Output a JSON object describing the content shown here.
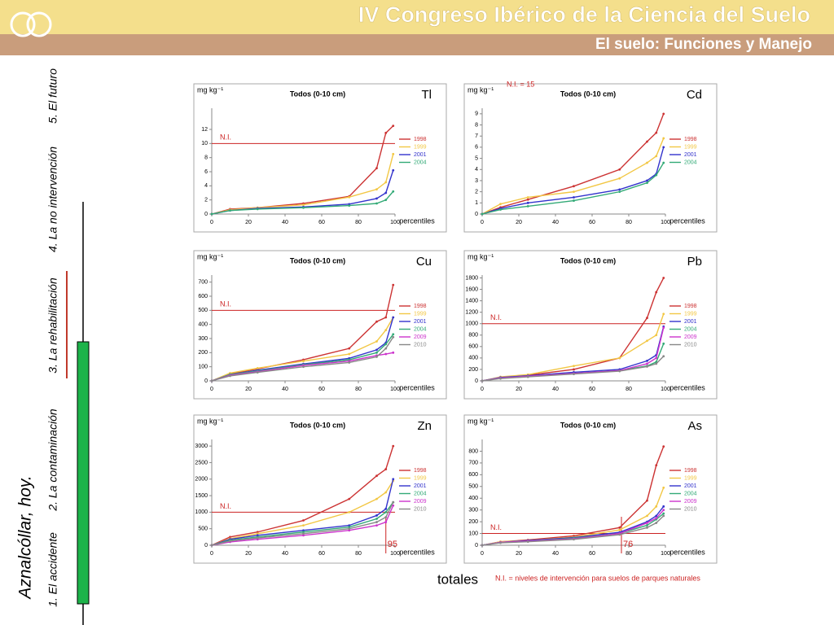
{
  "header": {
    "title": "IV Congreso Ibérico de la Ciencia del Suelo",
    "subtitle": "El suelo: Funciones y Manejo"
  },
  "sidebar": {
    "title": "Aznalcóllar, hoy.",
    "items": [
      "1. El accidente",
      "2. La contaminación",
      "3. La rehabilitación",
      "4. La no intervención",
      "5. El futuro"
    ]
  },
  "footer": {
    "label": "totales",
    "note": "N.I. = niveles de intervención para suelos de parques naturales"
  },
  "chart_data": [
    {
      "type": "line",
      "title": "Todos (0-10 cm)",
      "element": "Tl",
      "y_label": "mg kg⁻¹",
      "x_label": "percentiles",
      "x": [
        0,
        10,
        25,
        50,
        75,
        90,
        95,
        99
      ],
      "xlim": [
        0,
        100
      ],
      "xticks": [
        0,
        20,
        40,
        60,
        80,
        100
      ],
      "ylim": [
        0,
        15
      ],
      "yticks": [
        0,
        2,
        4,
        6,
        8,
        10,
        12
      ],
      "reference_line": {
        "value": 10,
        "label": "N.I."
      },
      "series": [
        {
          "name": "1998",
          "color": "#cc3333",
          "values": [
            0,
            0.7,
            0.9,
            1.5,
            2.5,
            6.5,
            11.5,
            12.5
          ]
        },
        {
          "name": "1999",
          "color": "#f2c744",
          "values": [
            0,
            0.6,
            0.9,
            1.3,
            2.4,
            3.5,
            4.5,
            8.5
          ]
        },
        {
          "name": "2001",
          "color": "#3333cc",
          "values": [
            0,
            0.5,
            0.8,
            1.0,
            1.4,
            2.2,
            3,
            6.2
          ]
        },
        {
          "name": "2004",
          "color": "#33aa77",
          "values": [
            0,
            0.5,
            0.7,
            0.9,
            1.2,
            1.5,
            2,
            3.2
          ]
        }
      ]
    },
    {
      "type": "line",
      "title": "Todos (0-10 cm)",
      "element": "Cd",
      "y_label": "mg kg⁻¹",
      "x_label": "percentiles",
      "annotation": "N.I. = 15",
      "x": [
        0,
        10,
        25,
        50,
        75,
        90,
        95,
        99
      ],
      "xlim": [
        0,
        100
      ],
      "xticks": [
        0,
        20,
        40,
        60,
        80,
        100
      ],
      "ylim": [
        0,
        9.5
      ],
      "yticks": [
        0,
        1,
        2,
        3,
        4,
        5,
        6,
        7,
        8,
        9
      ],
      "series": [
        {
          "name": "1998",
          "color": "#cc3333",
          "values": [
            0,
            0.6,
            1.3,
            2.5,
            4,
            6.5,
            7.3,
            9
          ]
        },
        {
          "name": "1999",
          "color": "#f2c744",
          "values": [
            0,
            0.9,
            1.5,
            2,
            3.2,
            4.6,
            5.2,
            6.8
          ]
        },
        {
          "name": "2001",
          "color": "#3333cc",
          "values": [
            0,
            0.5,
            1,
            1.5,
            2.2,
            3,
            3.6,
            6
          ]
        },
        {
          "name": "2004",
          "color": "#33aa77",
          "values": [
            0,
            0.4,
            0.7,
            1.2,
            2,
            2.8,
            3.5,
            4.6
          ]
        }
      ]
    },
    {
      "type": "line",
      "title": "Todos (0-10 cm)",
      "element": "Cu",
      "y_label": "mg kg⁻¹",
      "x_label": "percentiles",
      "x": [
        0,
        10,
        25,
        50,
        75,
        90,
        95,
        99
      ],
      "xlim": [
        0,
        100
      ],
      "xticks": [
        0,
        20,
        40,
        60,
        80,
        100
      ],
      "ylim": [
        0,
        750
      ],
      "yticks": [
        0,
        100,
        200,
        300,
        400,
        500,
        600,
        700
      ],
      "reference_line": {
        "value": 500,
        "label": "N.I."
      },
      "series": [
        {
          "name": "1998",
          "color": "#cc3333",
          "values": [
            0,
            50,
            85,
            150,
            230,
            420,
            450,
            680
          ]
        },
        {
          "name": "1999",
          "color": "#f2c744",
          "values": [
            0,
            55,
            90,
            140,
            190,
            280,
            360,
            450
          ]
        },
        {
          "name": "2001",
          "color": "#3333cc",
          "values": [
            0,
            45,
            75,
            120,
            160,
            220,
            270,
            450
          ]
        },
        {
          "name": "2004",
          "color": "#33aa77",
          "values": [
            0,
            45,
            70,
            115,
            150,
            200,
            260,
            330
          ]
        },
        {
          "name": "2009",
          "color": "#cc33cc",
          "values": [
            0,
            40,
            65,
            110,
            140,
            180,
            190,
            200
          ]
        },
        {
          "name": "2010",
          "color": "#888888",
          "values": [
            0,
            35,
            60,
            100,
            130,
            170,
            230,
            310
          ]
        }
      ]
    },
    {
      "type": "line",
      "title": "Todos (0-10 cm)",
      "element": "Pb",
      "y_label": "mg kg⁻¹",
      "x_label": "percentiles",
      "x": [
        0,
        10,
        25,
        50,
        75,
        90,
        95,
        99
      ],
      "xlim": [
        0,
        100
      ],
      "xticks": [
        0,
        20,
        40,
        60,
        80,
        100
      ],
      "ylim": [
        0,
        1850
      ],
      "yticks": [
        0,
        200,
        400,
        600,
        800,
        1000,
        1200,
        1400,
        1600,
        1800
      ],
      "reference_line": {
        "value": 1000,
        "label": "N.I."
      },
      "series": [
        {
          "name": "1998",
          "color": "#cc3333",
          "values": [
            0,
            60,
            100,
            200,
            400,
            1100,
            1550,
            1800
          ]
        },
        {
          "name": "1999",
          "color": "#f2c744",
          "values": [
            0,
            70,
            110,
            260,
            400,
            700,
            800,
            1170
          ]
        },
        {
          "name": "2001",
          "color": "#3333cc",
          "values": [
            0,
            60,
            90,
            150,
            200,
            350,
            450,
            950
          ]
        },
        {
          "name": "2004",
          "color": "#33aa77",
          "values": [
            0,
            50,
            80,
            130,
            180,
            260,
            330,
            650
          ]
        },
        {
          "name": "2009",
          "color": "#cc33cc",
          "values": [
            0,
            50,
            80,
            130,
            180,
            300,
            400,
            930
          ]
        },
        {
          "name": "2010",
          "color": "#888888",
          "values": [
            0,
            40,
            70,
            120,
            170,
            250,
            300,
            430
          ]
        }
      ]
    },
    {
      "type": "line",
      "title": "Todos (0-10 cm)",
      "element": "Zn",
      "y_label": "mg kg⁻¹",
      "x_label": "percentiles",
      "x": [
        0,
        10,
        25,
        50,
        75,
        90,
        95,
        99
      ],
      "xlim": [
        0,
        100
      ],
      "xticks": [
        0,
        20,
        40,
        60,
        80,
        100
      ],
      "ylim": [
        0,
        3200
      ],
      "yticks": [
        0,
        500,
        1000,
        1500,
        2000,
        2500,
        3000
      ],
      "reference_line": {
        "value": 1000,
        "label": "N.I."
      },
      "x_marker": 95,
      "series": [
        {
          "name": "1998",
          "color": "#cc3333",
          "values": [
            0,
            250,
            400,
            750,
            1400,
            2100,
            2300,
            3000
          ]
        },
        {
          "name": "1999",
          "color": "#f2c744",
          "values": [
            0,
            200,
            350,
            600,
            1000,
            1400,
            1600,
            1950
          ]
        },
        {
          "name": "2001",
          "color": "#3333cc",
          "values": [
            0,
            180,
            300,
            450,
            600,
            900,
            1100,
            2000
          ]
        },
        {
          "name": "2004",
          "color": "#33aa77",
          "values": [
            0,
            150,
            250,
            400,
            550,
            800,
            1000,
            1300
          ]
        },
        {
          "name": "2009",
          "color": "#cc33cc",
          "values": [
            0,
            100,
            180,
            300,
            450,
            600,
            700,
            1200
          ]
        },
        {
          "name": "2010",
          "color": "#888888",
          "values": [
            0,
            130,
            220,
            350,
            500,
            700,
            850,
            1300
          ]
        }
      ]
    },
    {
      "type": "line",
      "title": "Todos (0-10 cm)",
      "element": "As",
      "y_label": "mg kg⁻¹",
      "x_label": "percentiles",
      "x": [
        0,
        10,
        25,
        50,
        75,
        90,
        95,
        99
      ],
      "xlim": [
        0,
        100
      ],
      "xticks": [
        0,
        20,
        40,
        60,
        80,
        100
      ],
      "ylim": [
        0,
        900
      ],
      "yticks": [
        0,
        100,
        200,
        300,
        400,
        500,
        600,
        700,
        800
      ],
      "reference_line": {
        "value": 100,
        "label": "N.I."
      },
      "x_marker": 76,
      "series": [
        {
          "name": "1998",
          "color": "#cc3333",
          "values": [
            0,
            30,
            45,
            80,
            150,
            380,
            680,
            840
          ]
        },
        {
          "name": "1999",
          "color": "#f2c744",
          "values": [
            0,
            30,
            40,
            70,
            130,
            250,
            330,
            490
          ]
        },
        {
          "name": "2001",
          "color": "#3333cc",
          "values": [
            0,
            25,
            40,
            65,
            110,
            200,
            250,
            330
          ]
        },
        {
          "name": "2004",
          "color": "#33aa77",
          "values": [
            0,
            25,
            35,
            60,
            100,
            170,
            220,
            270
          ]
        },
        {
          "name": "2009",
          "color": "#cc33cc",
          "values": [
            0,
            25,
            35,
            55,
            100,
            190,
            230,
            300
          ]
        },
        {
          "name": "2010",
          "color": "#888888",
          "values": [
            0,
            20,
            30,
            50,
            90,
            150,
            190,
            250
          ]
        }
      ]
    }
  ]
}
